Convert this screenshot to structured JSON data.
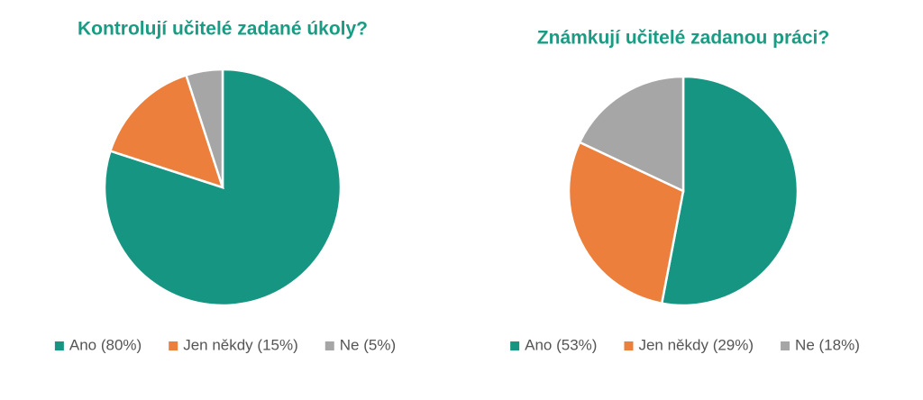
{
  "chart_data": [
    {
      "type": "pie",
      "title": "Kontrolují učitelé zadané úkoly?",
      "categories": [
        "Ano (80%)",
        "Jen někdy (15%)",
        "Ne (5%)"
      ],
      "values": [
        80,
        15,
        5
      ],
      "colors": [
        "#169682",
        "#eb7f3b",
        "#a6a6a6"
      ]
    },
    {
      "type": "pie",
      "title": "Známkují učitelé zadanou práci?",
      "categories": [
        "Ano (53%)",
        "Jen někdy (29%)",
        "Ne (18%)"
      ],
      "values": [
        53,
        29,
        18
      ],
      "colors": [
        "#169682",
        "#eb7f3b",
        "#a6a6a6"
      ]
    }
  ]
}
